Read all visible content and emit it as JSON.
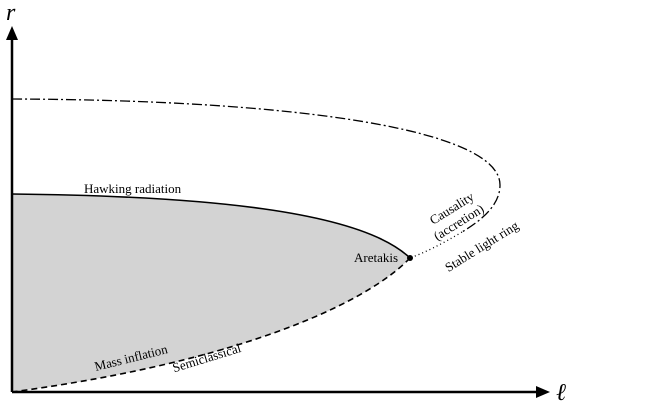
{
  "axes": {
    "y_label": "r",
    "x_label": "ℓ"
  },
  "labels": {
    "hawking": "Hawking radiation",
    "causality": "Causality",
    "accretion": "(accretion)",
    "light_ring": "Stable light ring",
    "aretakis": "Aretakis",
    "mass_inflation": "Mass inflation",
    "semiclassical": "Semiclassical"
  }
}
